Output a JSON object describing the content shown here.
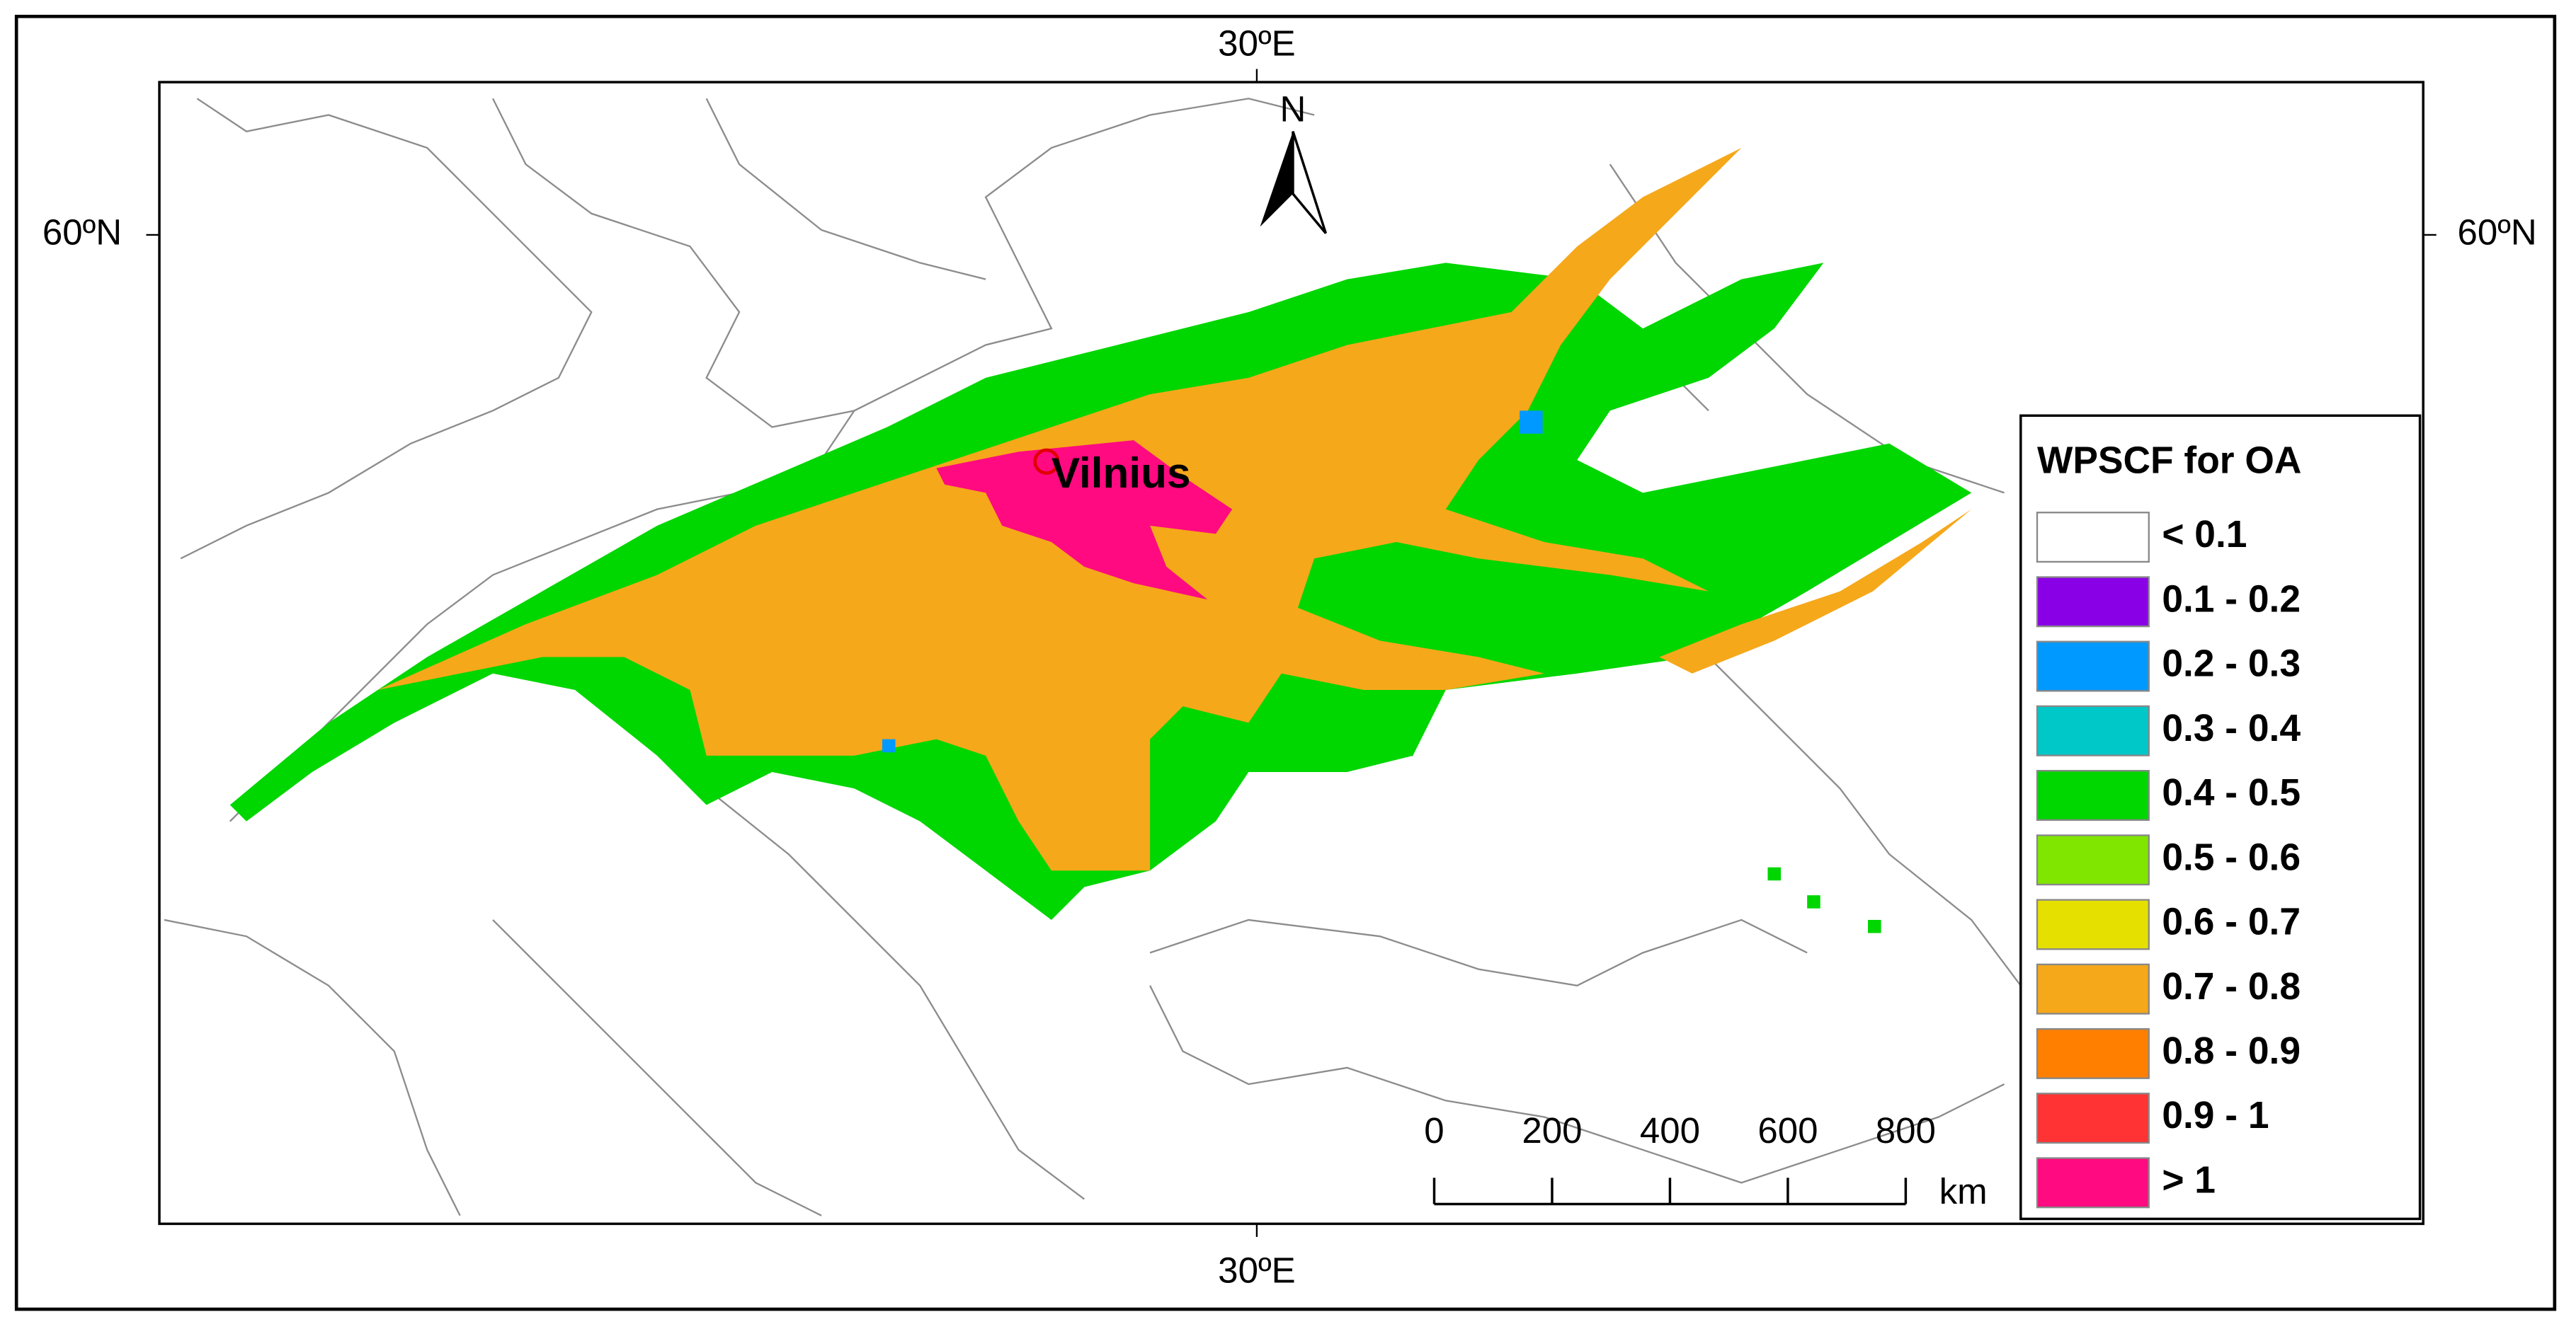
{
  "map": {
    "lon_label_top": "30ºE",
    "lon_label_bottom": "30ºE",
    "lat_label_left": "60ºN",
    "lat_label_right": "60ºN",
    "north_arrow": "N",
    "site_label": "Vilnius",
    "legend": {
      "title": "WPSCF for OA",
      "items": [
        "< 0.1",
        "0.1 - 0.2",
        "0.2 - 0.3",
        "0.3 - 0.4",
        "0.4 - 0.5",
        "0.5 - 0.6",
        "0.6 - 0.7",
        "0.7 - 0.8",
        "0.8 - 0.9",
        "0.9 - 1",
        "> 1"
      ]
    },
    "scale_bar": {
      "labels": [
        "0",
        "200",
        "400",
        "600",
        "800"
      ],
      "unit": "km"
    }
  }
}
